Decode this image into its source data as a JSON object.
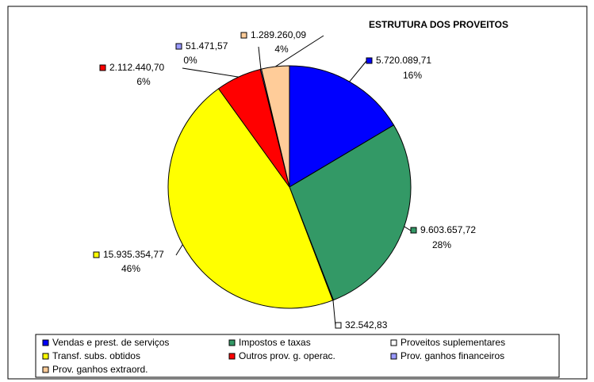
{
  "chart_data": {
    "type": "pie",
    "title": "ESTRUTURA DOS PROVEITOS",
    "categories": [
      "Vendas e prest. de serviços",
      "Impostos e taxas",
      "Proveitos suplementares",
      "Transf. subs. obtidos",
      "Outros prov. g. operac.",
      "Prov. ganhos financeiros",
      "Prov. ganhos extraord."
    ],
    "values": [
      5720089.71,
      9603657.72,
      32542.83,
      15935354.77,
      2112440.7,
      51471.57,
      1289260.09
    ],
    "value_labels": [
      "5.720.089,71",
      "9.603.657,72",
      "32.542,83",
      "15.935.354,77",
      "2.112.440,70",
      "51.471,57",
      "1.289.260,09"
    ],
    "percent_labels": [
      "16%",
      "28%",
      null,
      "46%",
      "6%",
      "0%",
      "4%"
    ],
    "colors": [
      "#0000ff",
      "#339966",
      "#ffffff",
      "#ffff00",
      "#ff0000",
      "#9999ff",
      "#ffcc99"
    ]
  }
}
